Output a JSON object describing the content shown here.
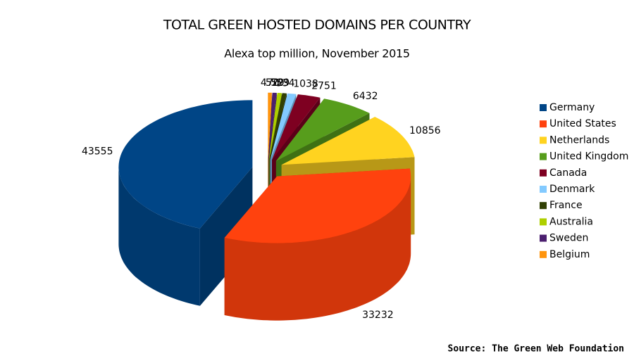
{
  "chart_data": {
    "type": "pie",
    "title": "TOTAL GREEN HOSTED DOMAINS PER COUNTRY",
    "subtitle": "Alexa top million, November 2015",
    "categories": [
      "Germany",
      "United States",
      "Netherlands",
      "United Kingdom",
      "Canada",
      "Denmark",
      "France",
      "Australia",
      "Sweden",
      "Belgium"
    ],
    "values": [
      43555,
      33232,
      10856,
      6432,
      2751,
      1038,
      534,
      529,
      529,
      470
    ],
    "colors": [
      "#004586",
      "#ff420e",
      "#ffd320",
      "#579d1c",
      "#7e0021",
      "#83caff",
      "#314004",
      "#aecf00",
      "#4b1f6f",
      "#ff950e"
    ],
    "legend": "right",
    "source": "Source: The Green Web Foundation"
  }
}
